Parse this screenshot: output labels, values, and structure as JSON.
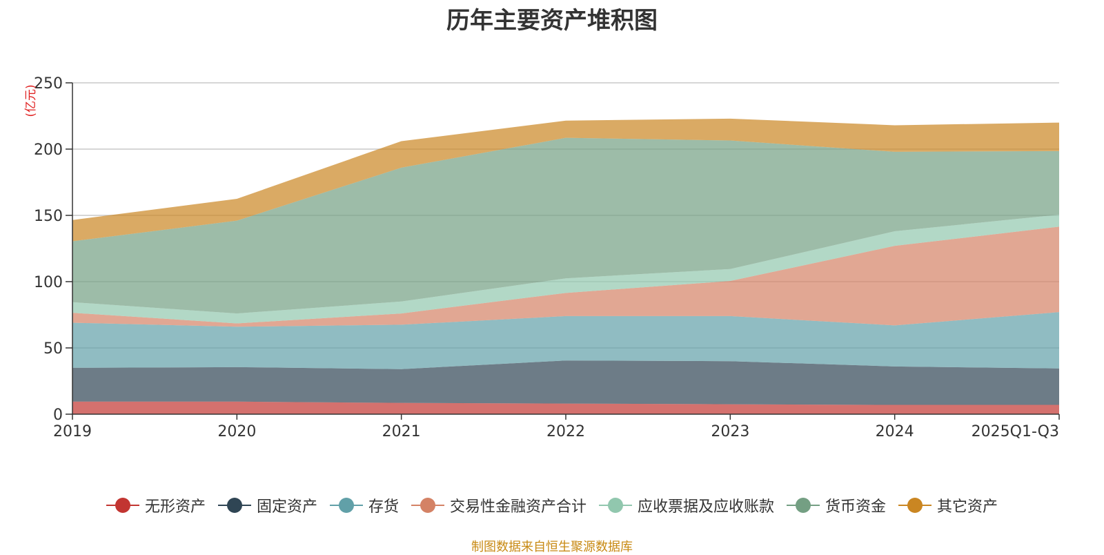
{
  "chart_data": {
    "type": "area",
    "stacked": true,
    "title": "历年主要资产堆积图",
    "ylabel": "(亿元)",
    "xlabel": "",
    "categories": [
      "2019",
      "2020",
      "2021",
      "2022",
      "2023",
      "2024",
      "2025Q1-Q3"
    ],
    "yticks": [
      "0",
      "50",
      "100",
      "150",
      "200",
      "250"
    ],
    "ylim": [
      0,
      250
    ],
    "grid": true,
    "legend_position": "bottom",
    "series": [
      {
        "name": "无形资产",
        "color": "#c23531",
        "values": [
          9.5,
          9.5,
          8.5,
          8,
          7.5,
          7,
          7
        ]
      },
      {
        "name": "固定资产",
        "color": "#2f4554",
        "values": [
          25.5,
          26,
          25.5,
          32.5,
          32.5,
          29,
          27.5
        ]
      },
      {
        "name": "存货",
        "color": "#61a0a8",
        "values": [
          34,
          30.5,
          33.5,
          33.5,
          34,
          31,
          42.5
        ]
      },
      {
        "name": "交易性金融资产合计",
        "color": "#d48265",
        "values": [
          7.5,
          2.5,
          8.5,
          17.5,
          26.5,
          60,
          64.5
        ]
      },
      {
        "name": "应收票据及应收账款",
        "color": "#91c7ae",
        "values": [
          8,
          7.5,
          9,
          11,
          9,
          11,
          9
        ]
      },
      {
        "name": "货币资金",
        "color": "#749f83",
        "values": [
          46,
          70,
          101,
          106,
          97,
          60,
          48
        ]
      },
      {
        "name": "其它资产",
        "color": "#ca8622",
        "values": [
          16,
          16.5,
          20,
          13,
          16.5,
          20,
          21.5
        ]
      }
    ]
  },
  "source_note": "制图数据来自恒生聚源数据库"
}
